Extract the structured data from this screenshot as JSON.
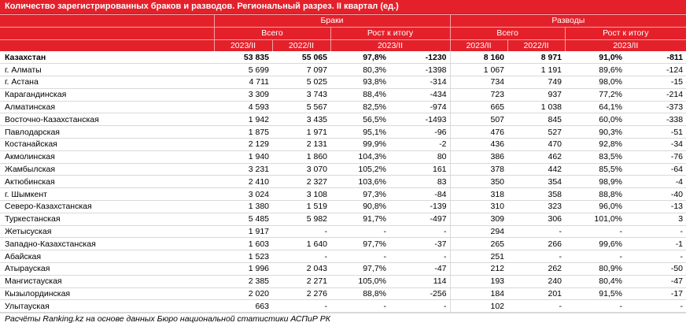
{
  "title": "Количество зарегистрированных браков и разводов. Региональный разрез. II квартал (ед.)",
  "headers": {
    "group_marriages": "Браки",
    "group_divorces": "Разводы",
    "total": "Всего",
    "growth": "Рост к итогу",
    "y2023": "2023/II",
    "y2022": "2022/II",
    "growth_period": "2023/II"
  },
  "rows": [
    {
      "name": "Казахстан",
      "m23": "53 835",
      "m22": "55 065",
      "mpct": "97,8%",
      "mdiff": "-1230",
      "d23": "8 160",
      "d22": "8 971",
      "dpct": "91,0%",
      "ddiff": "-811"
    },
    {
      "name": "г. Алматы",
      "m23": "5 699",
      "m22": "7 097",
      "mpct": "80,3%",
      "mdiff": "-1398",
      "d23": "1 067",
      "d22": "1 191",
      "dpct": "89,6%",
      "ddiff": "-124"
    },
    {
      "name": "г. Астана",
      "m23": "4 711",
      "m22": "5 025",
      "mpct": "93,8%",
      "mdiff": "-314",
      "d23": "734",
      "d22": "749",
      "dpct": "98,0%",
      "ddiff": "-15"
    },
    {
      "name": "Карагандинская",
      "m23": "3 309",
      "m22": "3 743",
      "mpct": "88,4%",
      "mdiff": "-434",
      "d23": "723",
      "d22": "937",
      "dpct": "77,2%",
      "ddiff": "-214"
    },
    {
      "name": "Алматинская",
      "m23": "4 593",
      "m22": "5 567",
      "mpct": "82,5%",
      "mdiff": "-974",
      "d23": "665",
      "d22": "1 038",
      "dpct": "64,1%",
      "ddiff": "-373"
    },
    {
      "name": "Восточно-Казахстанская",
      "m23": "1 942",
      "m22": "3 435",
      "mpct": "56,5%",
      "mdiff": "-1493",
      "d23": "507",
      "d22": "845",
      "dpct": "60,0%",
      "ddiff": "-338"
    },
    {
      "name": "Павлодарская",
      "m23": "1 875",
      "m22": "1 971",
      "mpct": "95,1%",
      "mdiff": "-96",
      "d23": "476",
      "d22": "527",
      "dpct": "90,3%",
      "ddiff": "-51"
    },
    {
      "name": "Костанайская",
      "m23": "2 129",
      "m22": "2 131",
      "mpct": "99,9%",
      "mdiff": "-2",
      "d23": "436",
      "d22": "470",
      "dpct": "92,8%",
      "ddiff": "-34"
    },
    {
      "name": "Акмолинская",
      "m23": "1 940",
      "m22": "1 860",
      "mpct": "104,3%",
      "mdiff": "80",
      "d23": "386",
      "d22": "462",
      "dpct": "83,5%",
      "ddiff": "-76"
    },
    {
      "name": "Жамбылская",
      "m23": "3 231",
      "m22": "3 070",
      "mpct": "105,2%",
      "mdiff": "161",
      "d23": "378",
      "d22": "442",
      "dpct": "85,5%",
      "ddiff": "-64"
    },
    {
      "name": "Актюбинская",
      "m23": "2 410",
      "m22": "2 327",
      "mpct": "103,6%",
      "mdiff": "83",
      "d23": "350",
      "d22": "354",
      "dpct": "98,9%",
      "ddiff": "-4"
    },
    {
      "name": "г. Шымкент",
      "m23": "3 024",
      "m22": "3 108",
      "mpct": "97,3%",
      "mdiff": "-84",
      "d23": "318",
      "d22": "358",
      "dpct": "88,8%",
      "ddiff": "-40"
    },
    {
      "name": "Северо-Казахстанская",
      "m23": "1 380",
      "m22": "1 519",
      "mpct": "90,8%",
      "mdiff": "-139",
      "d23": "310",
      "d22": "323",
      "dpct": "96,0%",
      "ddiff": "-13"
    },
    {
      "name": "Туркестанская",
      "m23": "5 485",
      "m22": "5 982",
      "mpct": "91,7%",
      "mdiff": "-497",
      "d23": "309",
      "d22": "306",
      "dpct": "101,0%",
      "ddiff": "3"
    },
    {
      "name": "Жетысуская",
      "m23": "1 917",
      "m22": "-",
      "mpct": "-",
      "mdiff": "-",
      "d23": "294",
      "d22": "-",
      "dpct": "-",
      "ddiff": "-"
    },
    {
      "name": "Западно-Казахстанская",
      "m23": "1 603",
      "m22": "1 640",
      "mpct": "97,7%",
      "mdiff": "-37",
      "d23": "265",
      "d22": "266",
      "dpct": "99,6%",
      "ddiff": "-1"
    },
    {
      "name": "Абайская",
      "m23": "1 523",
      "m22": "-",
      "mpct": "-",
      "mdiff": "-",
      "d23": "251",
      "d22": "-",
      "dpct": "-",
      "ddiff": "-"
    },
    {
      "name": "Атырауская",
      "m23": "1 996",
      "m22": "2 043",
      "mpct": "97,7%",
      "mdiff": "-47",
      "d23": "212",
      "d22": "262",
      "dpct": "80,9%",
      "ddiff": "-50"
    },
    {
      "name": "Мангистауская",
      "m23": "2 385",
      "m22": "2 271",
      "mpct": "105,0%",
      "mdiff": "114",
      "d23": "193",
      "d22": "240",
      "dpct": "80,4%",
      "ddiff": "-47"
    },
    {
      "name": "Кызылординская",
      "m23": "2 020",
      "m22": "2 276",
      "mpct": "88,8%",
      "mdiff": "-256",
      "d23": "184",
      "d22": "201",
      "dpct": "91,5%",
      "ddiff": "-17"
    },
    {
      "name": "Улытауская",
      "m23": "663",
      "m22": "-",
      "mpct": "-",
      "mdiff": "-",
      "d23": "102",
      "d22": "-",
      "dpct": "-",
      "ddiff": "-"
    }
  ],
  "footer": "Расчёты Ranking.kz на основе данных Бюро национальной статистики АСПиР РК",
  "colors": {
    "header_bg": "#e4212b",
    "header_text": "#ffffff",
    "grid": "#d9d9d9"
  }
}
